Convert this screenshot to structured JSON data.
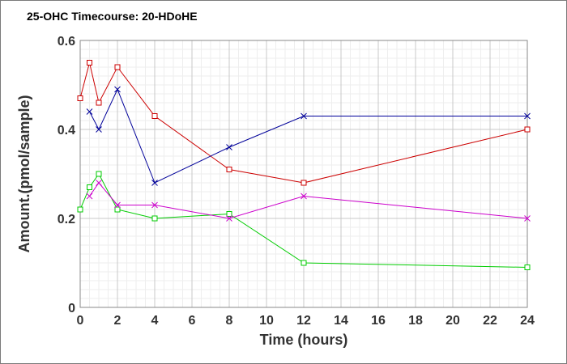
{
  "chart_data": {
    "type": "line",
    "title": "25-OHC Timecourse: 20-HDoHE",
    "xlabel": "Time (hours)",
    "ylabel": "Amount.(pmol/sample)",
    "xlim": [
      0,
      24
    ],
    "ylim": [
      0,
      0.6
    ],
    "x_ticks": [
      "0",
      "2",
      "4",
      "6",
      "8",
      "10",
      "12",
      "14",
      "16",
      "18",
      "20",
      "22",
      "24"
    ],
    "y_ticks": [
      "0",
      "0.2",
      "0.4",
      "0.6"
    ],
    "grid": true,
    "series": [
      {
        "color": "#cc0000",
        "marker": "square",
        "x": [
          0,
          0.5,
          1,
          2,
          4,
          8,
          12,
          24
        ],
        "y": [
          0.47,
          0.55,
          0.46,
          0.54,
          0.43,
          0.31,
          0.28,
          0.4
        ]
      },
      {
        "color": "#000099",
        "marker": "x",
        "x": [
          0.5,
          1,
          2,
          4,
          8,
          12,
          24
        ],
        "y": [
          0.44,
          0.4,
          0.49,
          0.28,
          0.36,
          0.43,
          0.43
        ]
      },
      {
        "color": "#00cc00",
        "marker": "square",
        "x": [
          0,
          0.5,
          1,
          2,
          4,
          8,
          12,
          24
        ],
        "y": [
          0.22,
          0.27,
          0.3,
          0.22,
          0.2,
          0.21,
          0.1,
          0.09
        ]
      },
      {
        "color": "#cc00cc",
        "marker": "x",
        "x": [
          0.5,
          1,
          2,
          4,
          8,
          12,
          24
        ],
        "y": [
          0.25,
          0.28,
          0.23,
          0.23,
          0.2,
          0.25,
          0.2
        ]
      }
    ]
  }
}
